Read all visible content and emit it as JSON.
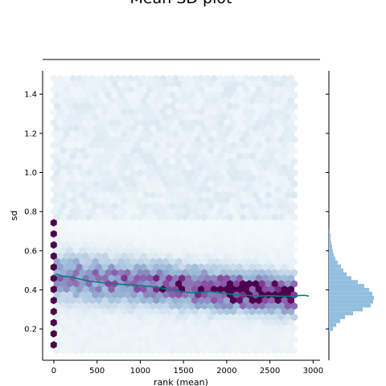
{
  "chart_data": {
    "type": "hexbin",
    "title": "Mean SD plot",
    "xlabel": "rank (mean)",
    "ylabel": "sd",
    "xlim": [
      -130,
      3080
    ],
    "ylim": [
      0.04,
      1.52
    ],
    "x_ticks": [
      0,
      500,
      1000,
      1500,
      2000,
      2500,
      3000
    ],
    "y_ticks": [
      0.2,
      0.4,
      0.6,
      0.8,
      1.0,
      1.2,
      1.4
    ],
    "x_tick_labels": [
      "0",
      "500",
      "1000",
      "1500",
      "2000",
      "2500",
      "3000"
    ],
    "y_tick_labels": [
      "0.2",
      "0.4",
      "0.6",
      "0.8",
      "1.0",
      "1.2",
      "1.4"
    ],
    "hexbin_colormap": "BuPu",
    "hexbin_x_range": [
      0,
      2780
    ],
    "hexbin_y_range": [
      0.09,
      1.48
    ],
    "trend_line": {
      "color": "#008080",
      "x": [
        0,
        30,
        100,
        200,
        300,
        400,
        500,
        600,
        700,
        800,
        900,
        1000,
        1100,
        1200,
        1300,
        1400,
        1500,
        1600,
        1700,
        1800,
        1900,
        2000,
        2100,
        2200,
        2300,
        2400,
        2500,
        2600,
        2700,
        2800,
        2900,
        2950
      ],
      "y": [
        0.47,
        0.48,
        0.47,
        0.465,
        0.455,
        0.445,
        0.44,
        0.435,
        0.432,
        0.428,
        0.425,
        0.422,
        0.418,
        0.412,
        0.405,
        0.4,
        0.39,
        0.385,
        0.388,
        0.392,
        0.386,
        0.38,
        0.375,
        0.372,
        0.37,
        0.368,
        0.37,
        0.368,
        0.367,
        0.37,
        0.372,
        0.368
      ]
    },
    "marginal_histogram_y": {
      "color": "#93bfdf",
      "bins": [
        0.19,
        0.21,
        0.23,
        0.25,
        0.27,
        0.29,
        0.31,
        0.33,
        0.35,
        0.37,
        0.39,
        0.41,
        0.43,
        0.45,
        0.47,
        0.49,
        0.51,
        0.53,
        0.55,
        0.57,
        0.59,
        0.61,
        0.63,
        0.65,
        0.67,
        0.69,
        0.71
      ],
      "counts": [
        5,
        9,
        14,
        20,
        30,
        42,
        52,
        55,
        56,
        54,
        50,
        44,
        36,
        28,
        22,
        18,
        15,
        11,
        8,
        6,
        5,
        4,
        3,
        2,
        2,
        1
      ]
    },
    "marginal_histogram_x": {
      "color": "#93bfdf",
      "counts": []
    }
  }
}
